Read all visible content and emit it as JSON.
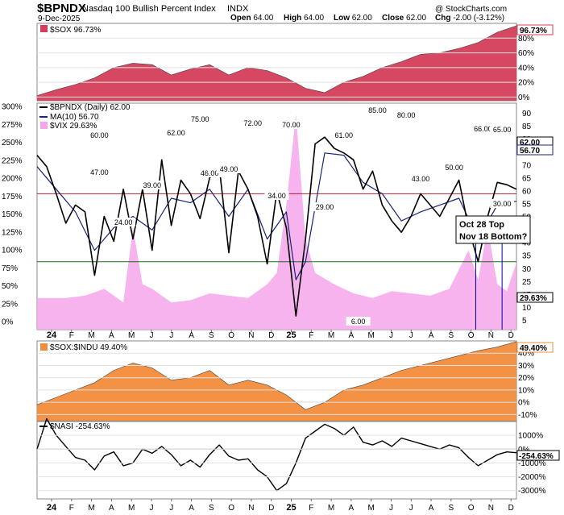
{
  "header": {
    "symbol": "$BPNDX",
    "name": "Nasdaq 100 Bullish Percent Index",
    "exchange": "INDX",
    "date": "9-Dec-2025",
    "copyright": "@ StockCharts.com",
    "ohlc": [
      {
        "label": "Open",
        "value": "64.00"
      },
      {
        "label": "High",
        "value": "64.00"
      },
      {
        "label": "Low",
        "value": "62.00"
      },
      {
        "label": "Close",
        "value": "62.00"
      },
      {
        "label": "Chg",
        "value": "-2.00 (-3.12%)"
      }
    ]
  },
  "colors": {
    "sox": "#d43d5a",
    "bpndx": "#000000",
    "ma": "#1a237e",
    "vix": "#f4a6ea",
    "ratio": "#f28c3a",
    "nasi": "#000000",
    "upper_line": "#b22234",
    "lower_line": "#1b6b1b",
    "note": "#0000aa"
  },
  "chart_data": [
    {
      "type": "area",
      "panel": "SOX",
      "legend": "$SOX 96.73%",
      "last_value": "96.73%",
      "ylim": [
        -5,
        100
      ],
      "ytick_labels": [
        "80%",
        "60%",
        "40%",
        "20%",
        "0%"
      ],
      "yticks": [
        80,
        60,
        40,
        20,
        0
      ],
      "x": [
        0,
        4,
        8,
        12,
        16,
        20,
        24,
        28,
        32,
        36,
        40,
        44,
        48,
        52,
        56,
        60,
        64,
        68,
        72,
        76,
        80,
        84,
        88,
        92,
        96,
        100
      ],
      "values": [
        2,
        10,
        17,
        26,
        40,
        46,
        44,
        30,
        38,
        44,
        30,
        40,
        36,
        26,
        12,
        6,
        20,
        28,
        40,
        48,
        58,
        60,
        66,
        74,
        88,
        96.73
      ]
    },
    {
      "type": "line",
      "panel": "BPNDX",
      "legend": [
        "$BPNDX (Daily) 62.00",
        "MA(10) 56.70",
        "$VIX 29.63%"
      ],
      "ylim": [
        0,
        100
      ],
      "ytick_labels": [
        "300%",
        "275%",
        "250%",
        "225%",
        "200%",
        "175%",
        "150%",
        "125%",
        "100%",
        "75%",
        "50%",
        "25%",
        "0%"
      ],
      "right_tick_labels": [
        "90",
        "85",
        "80",
        "75",
        "70",
        "65",
        "60",
        "55",
        "50",
        "45",
        "40",
        "35",
        "30",
        "25",
        "15",
        "10",
        "5"
      ],
      "right_values": [
        "62.00",
        "56.70",
        "29.63%"
      ],
      "reference_lines": [
        60,
        30
      ],
      "series": [
        {
          "name": "$BPNDX (Daily)",
          "x": [
            0,
            2,
            4,
            6,
            8,
            10,
            12,
            14,
            16,
            18,
            20,
            22,
            24,
            26,
            28,
            30,
            32,
            34,
            36,
            38,
            40,
            42,
            44,
            46,
            48,
            50,
            52,
            54,
            56,
            58,
            60,
            62,
            64,
            66,
            68,
            70,
            72,
            74,
            76,
            78,
            80,
            82,
            84,
            86,
            88,
            90,
            92,
            94,
            96,
            98,
            100
          ],
          "values": [
            77,
            72,
            60,
            47,
            55,
            52,
            24,
            50,
            39,
            62,
            40,
            62,
            35,
            75,
            46,
            66,
            60,
            49,
            67,
            72,
            34,
            70,
            62,
            50,
            29,
            61,
            45,
            6,
            40,
            82,
            85,
            80,
            78,
            75,
            62,
            70,
            55,
            48,
            43,
            50,
            60,
            55,
            50,
            58,
            66,
            45,
            30,
            50,
            65,
            64,
            62
          ]
        },
        {
          "name": "MA(10)",
          "x": [
            0,
            4,
            8,
            12,
            16,
            20,
            24,
            28,
            32,
            36,
            40,
            44,
            48,
            52,
            54,
            56,
            60,
            64,
            68,
            72,
            76,
            80,
            84,
            88,
            92,
            96,
            100
          ],
          "values": [
            72,
            62,
            52,
            35,
            45,
            50,
            44,
            58,
            56,
            62,
            50,
            62,
            40,
            52,
            22,
            30,
            78,
            77,
            65,
            60,
            48,
            52,
            55,
            58,
            40,
            55,
            56.7
          ]
        },
        {
          "name": "$VIX",
          "x": [
            0,
            6,
            10,
            14,
            18,
            20,
            22,
            24,
            28,
            32,
            36,
            40,
            44,
            48,
            50,
            52,
            54,
            56,
            58,
            62,
            66,
            70,
            74,
            78,
            82,
            86,
            90,
            92,
            94,
            96,
            98,
            100
          ],
          "values": [
            14,
            14,
            15,
            18,
            12,
            45,
            20,
            18,
            12,
            13,
            16,
            15,
            14,
            20,
            25,
            55,
            95,
            40,
            25,
            20,
            16,
            14,
            17,
            16,
            15,
            18,
            35,
            22,
            45,
            20,
            17,
            29.63
          ]
        }
      ],
      "annotations": [
        "60.00",
        "47.00",
        "24.00",
        "39.00",
        "62.00",
        "75.00",
        "46.00",
        "49.00",
        "72.00",
        "34.00",
        "70.00",
        "29.00",
        "61.00",
        "6.00",
        "85.00",
        "80.00",
        "43.00",
        "50.00",
        "66.00",
        "65.00",
        "30.00"
      ],
      "callout": [
        "Oct 28 Top",
        "Nov 18 Bottom?"
      ]
    },
    {
      "type": "area",
      "panel": "SOX:INDU",
      "legend": "$SOX:$INDU 49.40%",
      "last_value": "49.40%",
      "ylim": [
        -15,
        50
      ],
      "ytick_labels": [
        "40%",
        "30%",
        "20%",
        "10%",
        "0%",
        "-10%"
      ],
      "yticks": [
        40,
        30,
        20,
        10,
        0,
        -10
      ],
      "x": [
        0,
        4,
        8,
        12,
        16,
        20,
        24,
        28,
        32,
        36,
        40,
        44,
        48,
        52,
        56,
        60,
        64,
        68,
        72,
        76,
        80,
        84,
        88,
        92,
        96,
        100
      ],
      "values": [
        -2,
        4,
        10,
        16,
        26,
        32,
        28,
        18,
        20,
        26,
        14,
        18,
        14,
        6,
        -6,
        0,
        10,
        14,
        20,
        26,
        30,
        34,
        38,
        42,
        45,
        49.4
      ]
    },
    {
      "type": "line",
      "panel": "NASI",
      "legend": "$NASI -254.63%",
      "last_value": "-254.63%",
      "ylim": [
        -3600,
        2000
      ],
      "ytick_labels": [
        "1000%",
        "0%",
        "-1000%",
        "-2000%",
        "-3000%"
      ],
      "yticks": [
        1000,
        0,
        -1000,
        -2000,
        -3000
      ],
      "x": [
        0,
        2,
        4,
        6,
        8,
        10,
        12,
        14,
        16,
        18,
        20,
        22,
        24,
        26,
        28,
        30,
        32,
        34,
        36,
        38,
        40,
        42,
        44,
        46,
        48,
        50,
        52,
        54,
        56,
        58,
        60,
        62,
        64,
        66,
        68,
        70,
        72,
        74,
        76,
        78,
        80,
        82,
        84,
        86,
        88,
        90,
        92,
        94,
        96,
        98,
        100
      ],
      "values": [
        0,
        2200,
        1000,
        200,
        -600,
        -800,
        -1500,
        -500,
        -200,
        -1200,
        -1000,
        0,
        -300,
        200,
        -400,
        -1200,
        -800,
        -1300,
        -400,
        300,
        -500,
        -800,
        -700,
        -1500,
        -2000,
        -3000,
        -2500,
        -1000,
        800,
        1300,
        1800,
        1500,
        1000,
        1600,
        500,
        300,
        600,
        200,
        800,
        600,
        400,
        200,
        0,
        300,
        100,
        -600,
        -1200,
        -800,
        -400,
        -200,
        -254.63
      ]
    }
  ],
  "x_axis": {
    "labels": [
      "24",
      "F",
      "M",
      "A",
      "M",
      "J",
      "J",
      "A",
      "S",
      "O",
      "N",
      "D",
      "25",
      "F",
      "M",
      "A",
      "M",
      "J",
      "J",
      "A",
      "S",
      "O",
      "N",
      "D"
    ]
  }
}
